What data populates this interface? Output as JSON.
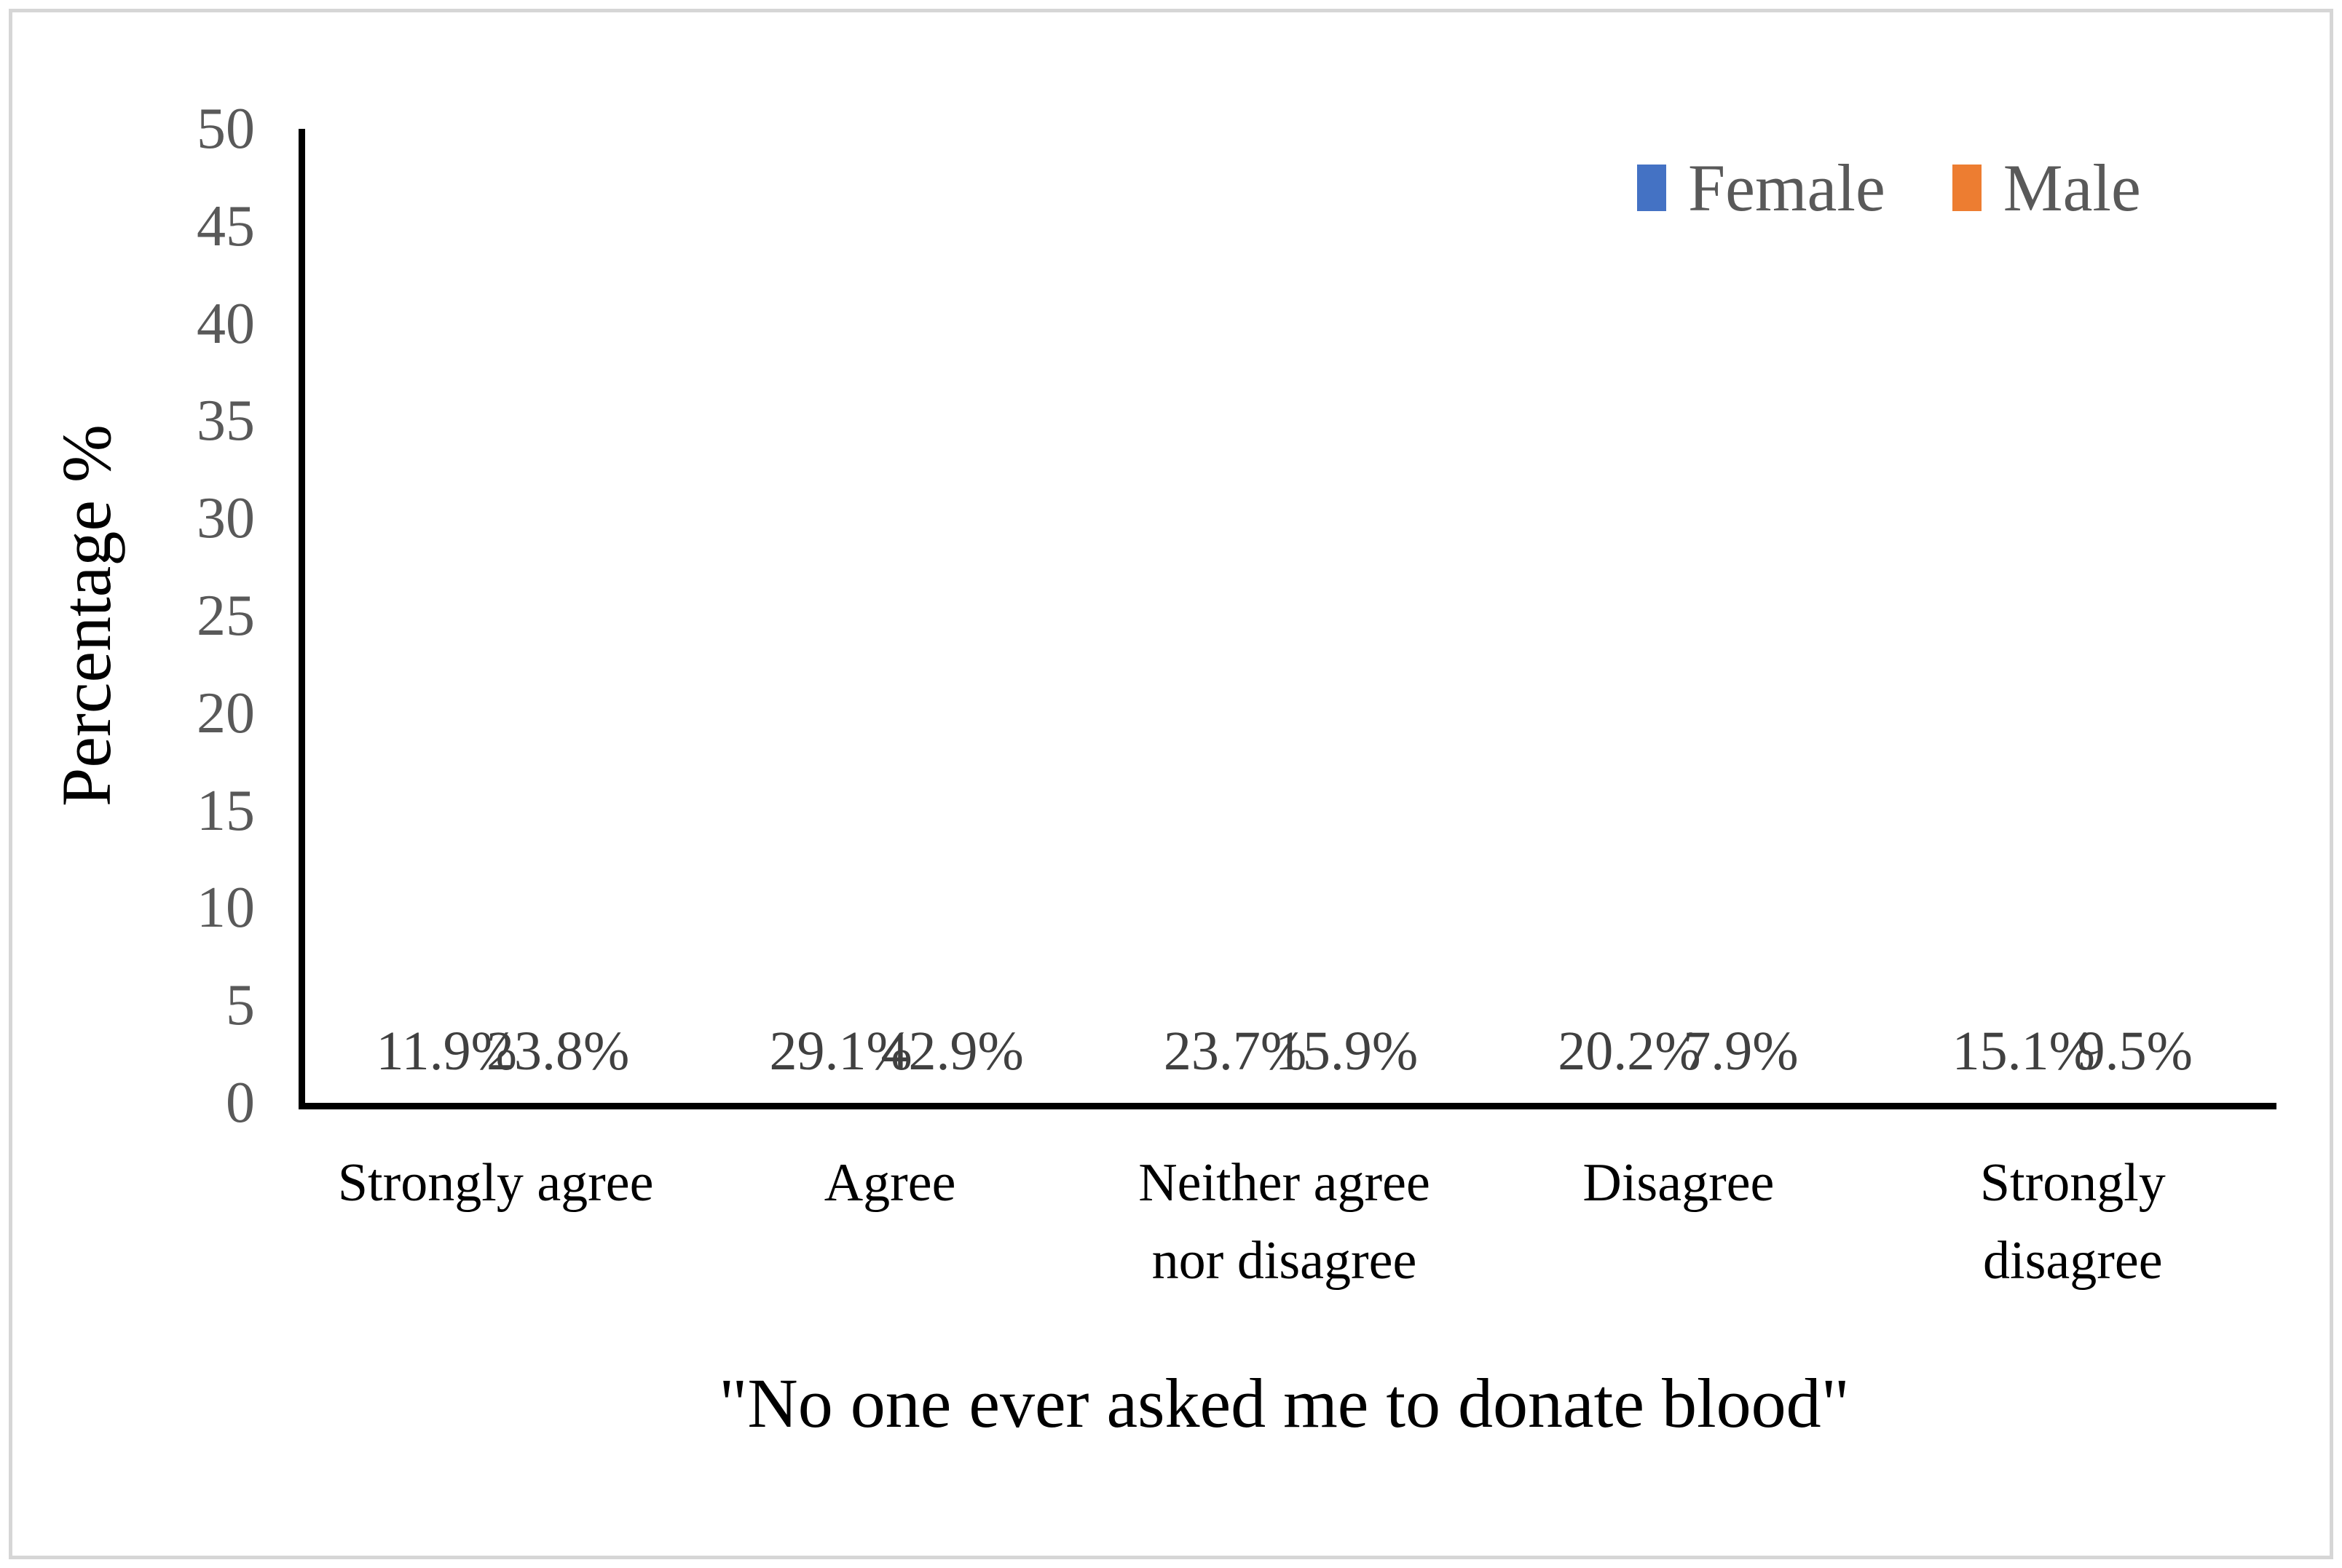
{
  "chart_data": {
    "type": "bar",
    "title": "\"No one ever asked me to donate blood\"",
    "ylabel": "Percentage %",
    "ymin": 0,
    "ymax": 50,
    "yticks": [
      0,
      5,
      10,
      15,
      20,
      25,
      30,
      35,
      40,
      45,
      50
    ],
    "grid": false,
    "legend_position": "top-right",
    "value_suffix": "%",
    "categories": [
      "Strongly agree",
      "Agree",
      "Neither agree\nnor disagree",
      "Disagree",
      "Strongly\ndisagree"
    ],
    "series": [
      {
        "name": "Female",
        "color": "#4472C4",
        "values": [
          11.9,
          29.1,
          23.7,
          20.2,
          15.1
        ]
      },
      {
        "name": "Male",
        "color": "#ED7D31",
        "values": [
          23.8,
          42.9,
          15.9,
          7.9,
          9.5
        ]
      }
    ],
    "data_labels": {
      "female": [
        "11.9%",
        "29.1%",
        "23.7%",
        "20.2%",
        "15.1%"
      ],
      "male": [
        "23.8%",
        "42.9%",
        "15.9%",
        "7.9%",
        "9.5%"
      ]
    }
  },
  "colors": {
    "axis": "#000000",
    "tick_label": "#595959",
    "data_label": "#404040",
    "category_label": "#000000",
    "legend_label": "#595959",
    "frame_border": "#d6d6d6",
    "background": "#ffffff"
  }
}
